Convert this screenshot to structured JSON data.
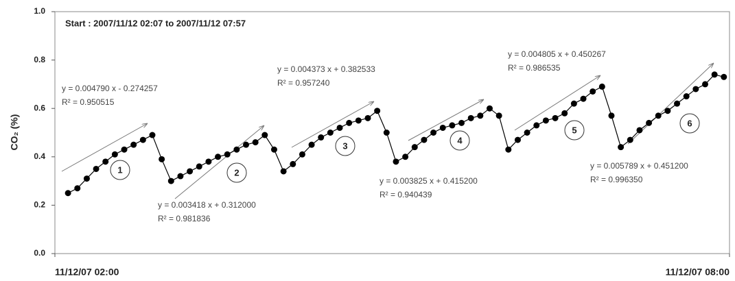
{
  "chart_data": {
    "type": "line",
    "title": "Start : 2007/11/12 02:07 to 2007/11/12 07:57",
    "y_label": "CO₂ (%)",
    "color": "#000000",
    "x": [
      "2007-11-12T02:07",
      "2007-11-12T02:12",
      "2007-11-12T02:17",
      "2007-11-12T02:22",
      "2007-11-12T02:27",
      "2007-11-12T02:32",
      "2007-11-12T02:37",
      "2007-11-12T02:42",
      "2007-11-12T02:47",
      "2007-11-12T02:52",
      "2007-11-12T02:57",
      "2007-11-12T03:02",
      "2007-11-12T03:07",
      "2007-11-12T03:12",
      "2007-11-12T03:17",
      "2007-11-12T03:22",
      "2007-11-12T03:27",
      "2007-11-12T03:32",
      "2007-11-12T03:37",
      "2007-11-12T03:42",
      "2007-11-12T03:47",
      "2007-11-12T03:52",
      "2007-11-12T03:57",
      "2007-11-12T04:02",
      "2007-11-12T04:07",
      "2007-11-12T04:12",
      "2007-11-12T04:17",
      "2007-11-12T04:22",
      "2007-11-12T04:27",
      "2007-11-12T04:32",
      "2007-11-12T04:37",
      "2007-11-12T04:42",
      "2007-11-12T04:47",
      "2007-11-12T04:52",
      "2007-11-12T04:57",
      "2007-11-12T05:02",
      "2007-11-12T05:07",
      "2007-11-12T05:12",
      "2007-11-12T05:17",
      "2007-11-12T05:22",
      "2007-11-12T05:27",
      "2007-11-12T05:32",
      "2007-11-12T05:37",
      "2007-11-12T05:42",
      "2007-11-12T05:47",
      "2007-11-12T05:52",
      "2007-11-12T05:57",
      "2007-11-12T06:02",
      "2007-11-12T06:07",
      "2007-11-12T06:12",
      "2007-11-12T06:17",
      "2007-11-12T06:22",
      "2007-11-12T06:27",
      "2007-11-12T06:32",
      "2007-11-12T06:37",
      "2007-11-12T06:42",
      "2007-11-12T06:47",
      "2007-11-12T06:52",
      "2007-11-12T06:57",
      "2007-11-12T07:02",
      "2007-11-12T07:07",
      "2007-11-12T07:12",
      "2007-11-12T07:17",
      "2007-11-12T07:22",
      "2007-11-12T07:27",
      "2007-11-12T07:32",
      "2007-11-12T07:37",
      "2007-11-12T07:42",
      "2007-11-12T07:47",
      "2007-11-12T07:52",
      "2007-11-12T07:57"
    ],
    "values": [
      0.25,
      0.27,
      0.31,
      0.35,
      0.38,
      0.41,
      0.43,
      0.45,
      0.47,
      0.49,
      0.39,
      0.3,
      0.32,
      0.34,
      0.36,
      0.38,
      0.4,
      0.41,
      0.43,
      0.45,
      0.46,
      0.49,
      0.43,
      0.34,
      0.37,
      0.41,
      0.45,
      0.48,
      0.5,
      0.52,
      0.54,
      0.55,
      0.56,
      0.59,
      0.5,
      0.38,
      0.4,
      0.44,
      0.47,
      0.5,
      0.52,
      0.53,
      0.54,
      0.56,
      0.57,
      0.6,
      0.57,
      0.43,
      0.47,
      0.5,
      0.53,
      0.55,
      0.56,
      0.58,
      0.62,
      0.64,
      0.67,
      0.69,
      0.57,
      0.44,
      0.47,
      0.51,
      0.54,
      0.57,
      0.59,
      0.62,
      0.65,
      0.68,
      0.7,
      0.74,
      0.73
    ],
    "xlim": [
      "2007-11-12T02:00",
      "2007-11-12T08:00"
    ],
    "xticks": [
      {
        "value": "2007-11-12T02:00",
        "label": "11/12/07 02:00"
      },
      {
        "value": "2007-11-12T08:00",
        "label": "11/12/07 08:00"
      }
    ],
    "ylim": [
      0,
      1
    ],
    "yticks": [
      {
        "value": 0,
        "label": "0.0"
      },
      0.2,
      0.4,
      0.6,
      0.8,
      {
        "value": 1,
        "label": "1.0"
      }
    ],
    "annotations": [
      {
        "cycle": "1",
        "equation": "y = 0.004790 x - 0.274257",
        "r_squared": "R² = 0.950515"
      },
      {
        "cycle": "2",
        "equation": "y = 0.003418 x + 0.312000",
        "r_squared": "R² = 0.981836"
      },
      {
        "cycle": "3",
        "equation": "y = 0.004373 x + 0.382533",
        "r_squared": "R² = 0.957240"
      },
      {
        "cycle": "4",
        "equation": "y = 0.003825 x + 0.415200",
        "r_squared": "R² = 0.940439"
      },
      {
        "cycle": "5",
        "equation": "y = 0.004805 x + 0.450267",
        "r_squared": "R² = 0.986535"
      },
      {
        "cycle": "6",
        "equation": "y = 0.005789 x + 0.451200",
        "r_squared": "R² = 0.996350"
      }
    ]
  }
}
